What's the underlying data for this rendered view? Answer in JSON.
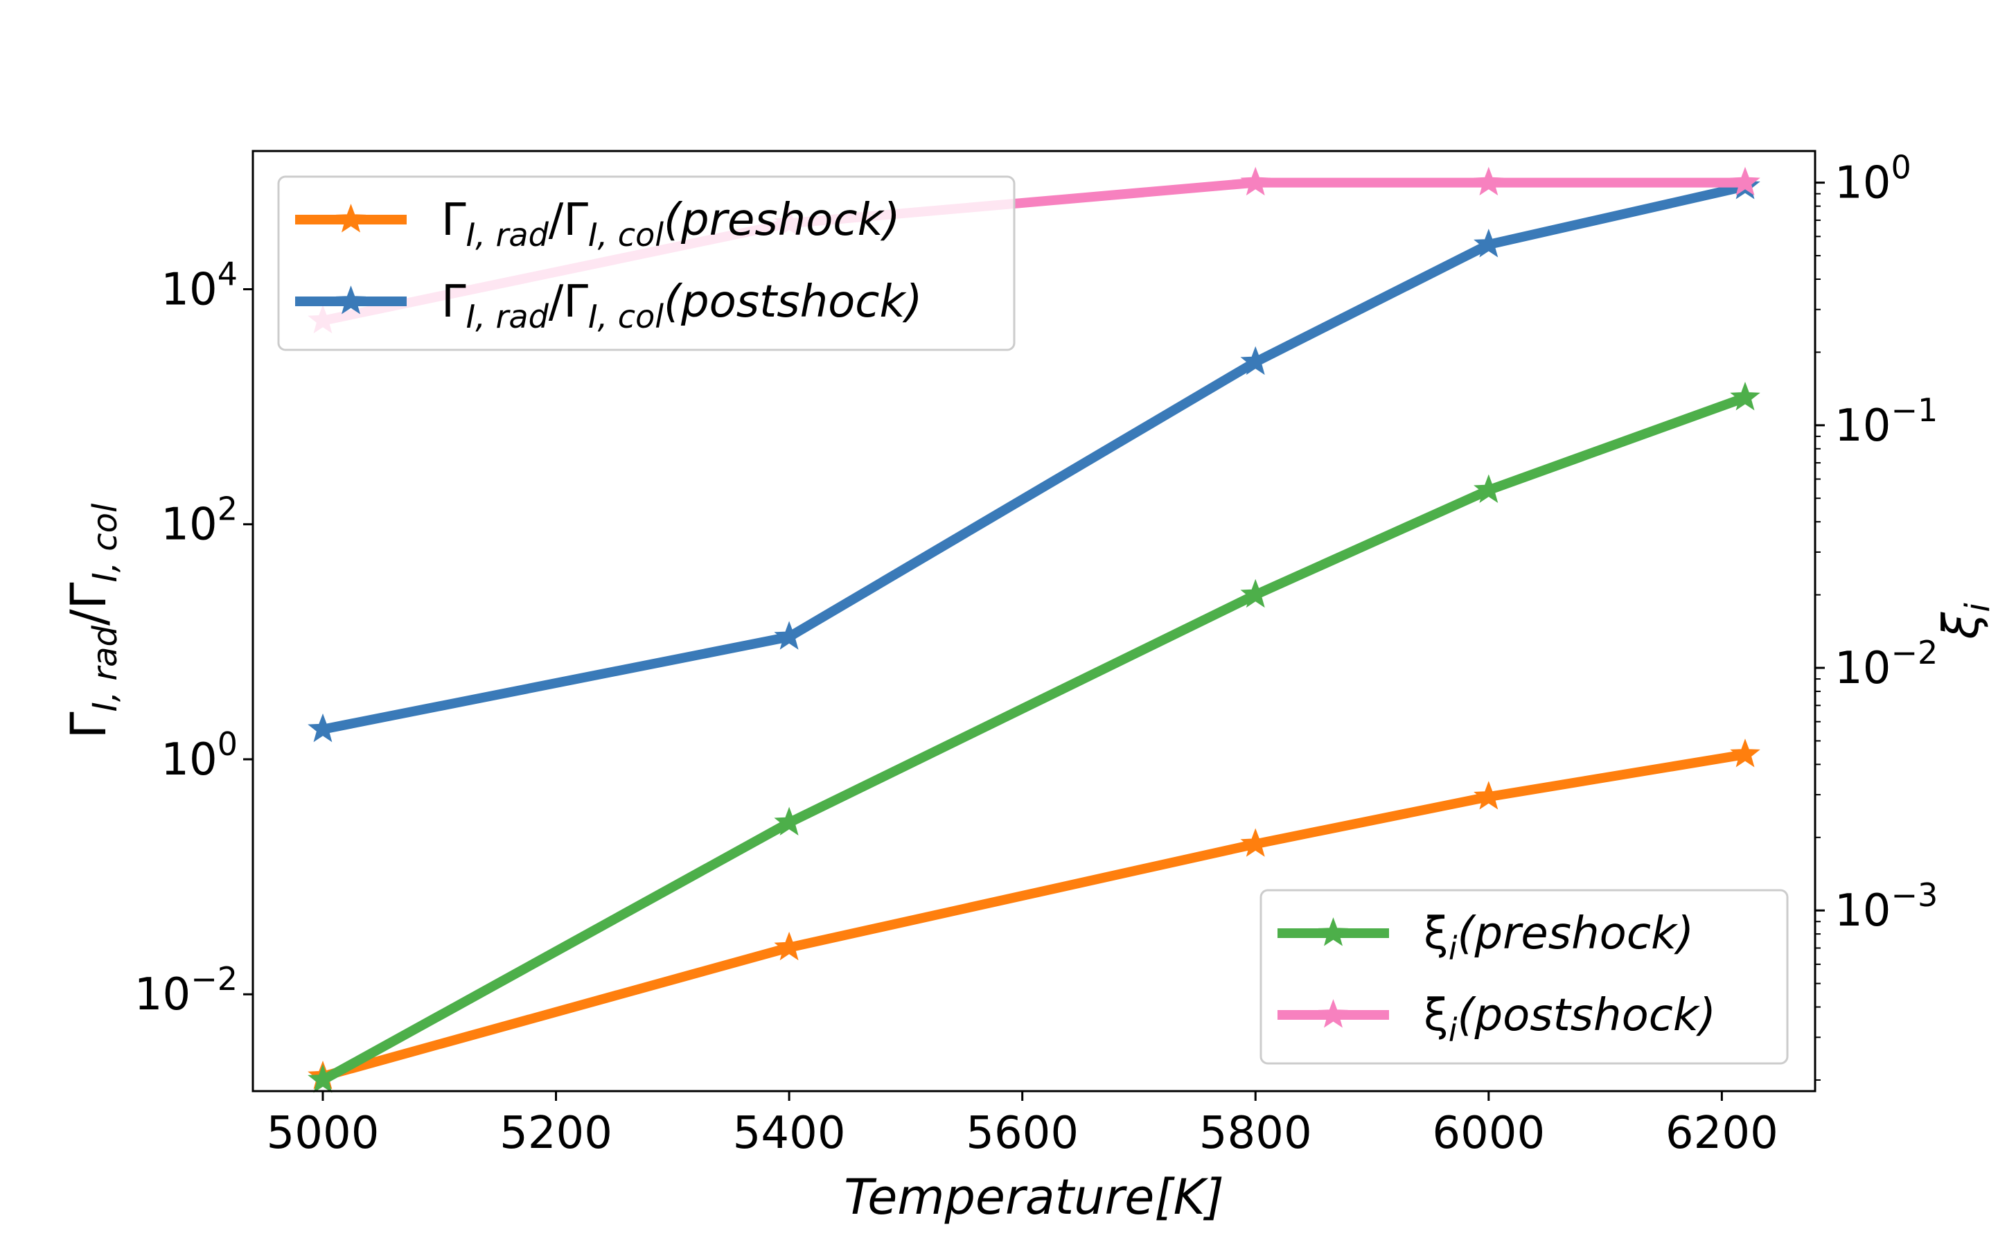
{
  "chart_data": {
    "type": "line",
    "x": [
      5000,
      5400,
      5800,
      6000,
      6220
    ],
    "xlabel": "Temperature[K]",
    "ylabel_left": "Γ_{I,rad}/Γ_{I,col}",
    "ylabel_right": "ξ_i",
    "xlim": [
      4940,
      6280
    ],
    "xticks": [
      5000,
      5200,
      5400,
      5600,
      5800,
      6000,
      6200
    ],
    "left_axis": {
      "scale": "log",
      "ylim": [
        0.0015,
        150000
      ],
      "ticks": [
        {
          "value": 0.01,
          "base": "10",
          "exp": "−2"
        },
        {
          "value": 1,
          "base": "10",
          "exp": "0"
        },
        {
          "value": 100,
          "base": "10",
          "exp": "2"
        },
        {
          "value": 10000,
          "base": "10",
          "exp": "4"
        }
      ]
    },
    "right_axis": {
      "scale": "log",
      "ylim": [
        0.00018,
        1.35
      ],
      "ticks": [
        {
          "value": 0.001,
          "base": "10",
          "exp": "−3"
        },
        {
          "value": 0.01,
          "base": "10",
          "exp": "−2"
        },
        {
          "value": 0.1,
          "base": "10",
          "exp": "−1"
        },
        {
          "value": 1,
          "base": "10",
          "exp": "0"
        }
      ]
    },
    "series": [
      {
        "id": "rate-preshock",
        "axis": "left",
        "color": "#ff7f0e",
        "legend": 0,
        "label_main": "Γ",
        "label_sub1": "I, rad",
        "label_mid": "/Γ",
        "label_sub2": "I, col",
        "label_tail": "(preshock)",
        "values": [
          0.002,
          0.025,
          0.19,
          0.48,
          1.1
        ]
      },
      {
        "id": "rate-postshock",
        "axis": "left",
        "color": "#3a7ab8",
        "legend": 0,
        "label_main": "Γ",
        "label_sub1": "I, rad",
        "label_mid": "/Γ",
        "label_sub2": "I, col",
        "label_tail": "(postshock)",
        "values": [
          1.8,
          11,
          2400,
          24000,
          75000
        ]
      },
      {
        "id": "xi-preshock",
        "axis": "right",
        "color": "#4daf4a",
        "legend": 1,
        "label_main": "ξ",
        "label_sub1": "i",
        "label_tail": "(preshock)",
        "values": [
          0.0002,
          0.0023,
          0.02,
          0.054,
          0.13
        ]
      },
      {
        "id": "xi-postshock",
        "axis": "right",
        "color": "#f781bf",
        "legend": 1,
        "label_main": "ξ",
        "label_sub1": "i",
        "label_tail": "(postshock)",
        "values": [
          0.27,
          0.68,
          1.0,
          1.0,
          1.0
        ]
      }
    ],
    "legends": [
      "upper-left",
      "lower-right"
    ],
    "grid": false
  }
}
